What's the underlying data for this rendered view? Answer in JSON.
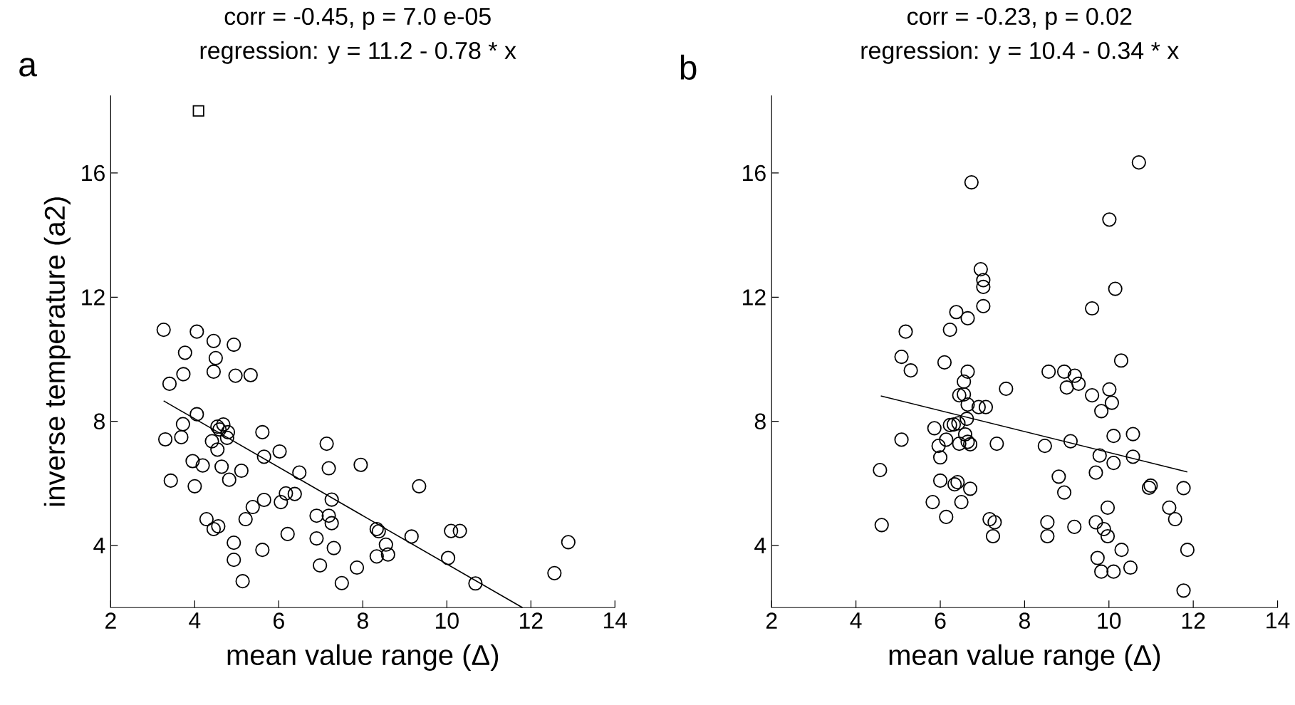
{
  "chart_data": [
    {
      "type": "scatter",
      "title": "corr = -0.45, p = 7.0 e-05",
      "subtitle": "regression: y = 11.2 - 0.78 * x",
      "xlabel": "mean value range (Δ)",
      "ylabel": "inverse temperature (a2)",
      "annotations": [
        "a"
      ],
      "xlim": [
        2,
        14
      ],
      "ylim": [
        2,
        18.5
      ],
      "xticks": [
        2,
        4,
        6,
        8,
        10,
        12,
        14
      ],
      "yticks": [
        4,
        8,
        12,
        16
      ],
      "marker": "circle",
      "series": [
        {
          "color": "#000000",
          "x": [
            3.26,
            4.05,
            4.45,
            4.93,
            3.77,
            4.5,
            4.45,
            3.73,
            4.97,
            5.33,
            3.4,
            4.05,
            3.72,
            4.54,
            4.68,
            4.79,
            4.59,
            5.61,
            3.3,
            3.68,
            4.41,
            4.77,
            7.14,
            4.54,
            6.02,
            5.65,
            3.95,
            4.19,
            4.64,
            7.19,
            6.49,
            3.43,
            4.82,
            5.11,
            4.0,
            6.17,
            6.38,
            6.05,
            5.65,
            7.26,
            5.38,
            4.28,
            4.45,
            4.56,
            5.21,
            6.9,
            7.19,
            7.26,
            6.21,
            6.9,
            7.31,
            4.93,
            5.61,
            4.93,
            6.98,
            5.14,
            7.5,
            7.95,
            9.34,
            8.33,
            8.38,
            8.55,
            8.6,
            8.33,
            7.86,
            9.16,
            10.03,
            10.1,
            10.31,
            10.68,
            12.89,
            12.56
          ],
          "values": [
            10.95,
            10.89,
            10.59,
            10.47,
            10.21,
            10.04,
            9.6,
            9.52,
            9.47,
            9.49,
            9.21,
            8.23,
            7.91,
            7.83,
            7.9,
            7.65,
            7.74,
            7.65,
            7.42,
            7.49,
            7.36,
            7.47,
            7.28,
            7.09,
            7.03,
            6.86,
            6.72,
            6.58,
            6.54,
            6.49,
            6.35,
            6.09,
            6.12,
            6.41,
            5.91,
            5.68,
            5.66,
            5.4,
            5.47,
            5.48,
            5.24,
            4.85,
            4.53,
            4.62,
            4.85,
            4.96,
            4.96,
            4.72,
            4.37,
            4.23,
            3.92,
            4.09,
            3.86,
            3.54,
            3.36,
            2.85,
            2.79,
            6.6,
            5.91,
            4.53,
            4.46,
            4.03,
            3.71,
            3.65,
            3.29,
            4.29,
            3.6,
            4.47,
            4.47,
            2.78,
            4.11,
            3.11
          ]
        },
        {
          "type": "scatter",
          "marker": "square",
          "color": "#000000",
          "x": [
            4.09
          ],
          "values": [
            18
          ]
        },
        {
          "type": "line",
          "marker": "none",
          "color": "#000000",
          "x": [
            3.26,
            11.8
          ],
          "values": [
            8.66,
            2.0
          ]
        }
      ]
    },
    {
      "type": "scatter",
      "title": "corr = -0.23, p = 0.02",
      "subtitle": "regression: y = 10.4 - 0.34 * x",
      "xlabel": "mean value range (Δ)",
      "annotations": [
        "b"
      ],
      "xlim": [
        2,
        14
      ],
      "ylim": [
        2,
        18.5
      ],
      "xticks": [
        2,
        4,
        6,
        8,
        10,
        12,
        14
      ],
      "yticks": [
        4,
        8,
        12,
        16
      ],
      "marker": "circle",
      "series": [
        {
          "color": "#000000",
          "x": [
            6.74,
            6.96,
            7.02,
            7.02,
            7.02,
            6.38,
            6.65,
            5.18,
            6.23,
            5.08,
            5.3,
            6.1,
            6.65,
            8.57,
            6.56,
            7.56,
            6.45,
            6.56,
            6.65,
            6.91,
            7.08,
            6.63,
            6.23,
            6.32,
            6.43,
            5.86,
            5.08,
            6.14,
            6.59,
            6.45,
            6.65,
            6.71,
            7.34,
            8.48,
            5.96,
            6.0,
            4.57,
            6.0,
            6.34,
            6.41,
            6.71,
            5.82,
            6.5,
            6.14,
            4.61,
            7.17,
            7.29,
            7.25,
            8.54,
            8.54,
            10.71,
            10.01,
            10.15,
            9.6,
            10.29,
            8.94,
            9.19,
            9.0,
            9.28,
            9.6,
            10.01,
            10.07,
            9.82,
            9.09,
            10.11,
            10.57,
            9.78,
            10.11,
            10.57,
            9.69,
            8.81,
            8.94,
            10.95,
            10.99,
            11.77,
            11.43,
            11.57,
            9.97,
            9.18,
            9.69,
            9.88,
            9.97,
            10.3,
            11.86,
            9.73,
            9.82,
            10.11,
            10.51,
            11.77
          ],
          "values": [
            15.7,
            12.9,
            12.55,
            12.33,
            11.71,
            11.52,
            11.32,
            10.89,
            10.95,
            10.08,
            9.64,
            9.9,
            9.6,
            9.6,
            9.28,
            9.05,
            8.84,
            8.87,
            8.54,
            8.46,
            8.46,
            8.08,
            7.88,
            7.9,
            7.94,
            7.78,
            7.41,
            7.41,
            7.58,
            7.28,
            7.34,
            7.26,
            7.28,
            7.21,
            7.21,
            6.84,
            6.43,
            6.09,
            5.97,
            6.04,
            5.83,
            5.4,
            5.4,
            4.92,
            4.66,
            4.85,
            4.75,
            4.3,
            4.75,
            4.3,
            16.34,
            14.5,
            12.27,
            11.64,
            9.96,
            9.6,
            9.47,
            9.09,
            9.21,
            8.84,
            9.03,
            8.6,
            8.33,
            7.36,
            7.53,
            7.59,
            6.9,
            6.66,
            6.86,
            6.35,
            6.22,
            5.71,
            5.86,
            5.93,
            5.85,
            5.22,
            4.85,
            5.22,
            4.6,
            4.75,
            4.53,
            4.3,
            3.86,
            3.86,
            3.6,
            3.16,
            3.16,
            3.29,
            2.55
          ]
        },
        {
          "type": "line",
          "marker": "none",
          "color": "#000000",
          "x": [
            4.59,
            11.86
          ],
          "values": [
            8.82,
            6.37
          ]
        }
      ]
    }
  ]
}
